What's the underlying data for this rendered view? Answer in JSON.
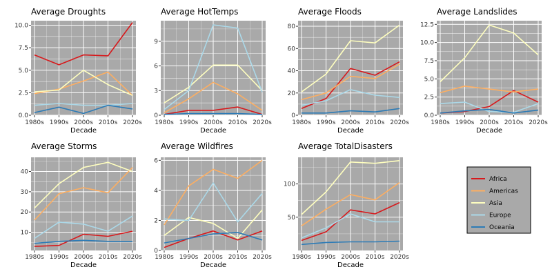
{
  "figure": {
    "legend_position": "right",
    "background": "#ffffff",
    "panel_background": "#a9a9a9",
    "grid_color": "#ffffff"
  },
  "legend": {
    "items": [
      {
        "name": "Africa",
        "color": "#d7191c"
      },
      {
        "name": "Americas",
        "color": "#fdae61"
      },
      {
        "name": "Asia",
        "color": "#ffffbf"
      },
      {
        "name": "Europe",
        "color": "#abd9e9"
      },
      {
        "name": "Oceania",
        "color": "#2c7bb6"
      }
    ]
  },
  "chart_data": [
    {
      "type": "line",
      "title": "Average Droughts",
      "xlabel": "Decade",
      "ylabel": "",
      "categories": [
        "1980s",
        "1990s",
        "2000s",
        "2010s",
        "2020s"
      ],
      "ylim": [
        0,
        10.5
      ],
      "yticks": [
        0.0,
        2.5,
        5.0,
        7.5,
        10.0
      ],
      "ytick_labels": [
        "0.0",
        "2.5",
        "5.0",
        "7.5",
        "10.0"
      ],
      "series": [
        {
          "name": "Africa",
          "values": [
            6.7,
            5.6,
            6.7,
            6.6,
            10.3
          ]
        },
        {
          "name": "Americas",
          "values": [
            2.4,
            2.9,
            3.8,
            4.8,
            2.2
          ]
        },
        {
          "name": "Asia",
          "values": [
            2.6,
            2.8,
            5.0,
            3.4,
            2.2
          ]
        },
        {
          "name": "Europe",
          "values": [
            1.1,
            1.3,
            1.1,
            1.1,
            1.3
          ]
        },
        {
          "name": "Oceania",
          "values": [
            0.3,
            0.9,
            0.2,
            1.1,
            0.7
          ]
        }
      ]
    },
    {
      "type": "line",
      "title": "Average HotTemps",
      "xlabel": "Decade",
      "ylabel": "",
      "categories": [
        "1980s",
        "1990s",
        "2000s",
        "2010s",
        "2020s"
      ],
      "ylim": [
        0,
        11.5
      ],
      "yticks": [
        0,
        3,
        6,
        9
      ],
      "ytick_labels": [
        "0",
        "3",
        "6",
        "9"
      ],
      "series": [
        {
          "name": "Africa",
          "values": [
            0.1,
            0.6,
            0.6,
            1.0,
            0.1
          ]
        },
        {
          "name": "Americas",
          "values": [
            0.3,
            2.0,
            4.0,
            2.6,
            0.6
          ]
        },
        {
          "name": "Asia",
          "values": [
            1.5,
            3.4,
            6.1,
            6.1,
            3.0
          ]
        },
        {
          "name": "Europe",
          "values": [
            0.7,
            3.0,
            11.0,
            10.6,
            2.8
          ]
        },
        {
          "name": "Oceania",
          "values": [
            0.1,
            0.2,
            0.2,
            0.2,
            0.1
          ]
        }
      ]
    },
    {
      "type": "line",
      "title": "Average Floods",
      "xlabel": "Decade",
      "ylabel": "",
      "categories": [
        "1980s",
        "1990s",
        "2000s",
        "2010s",
        "2020s"
      ],
      "ylim": [
        0,
        85
      ],
      "yticks": [
        0,
        20,
        40,
        60,
        80
      ],
      "ytick_labels": [
        "0",
        "20",
        "40",
        "60",
        "80"
      ],
      "series": [
        {
          "name": "Africa",
          "values": [
            6,
            15,
            42,
            36,
            48
          ]
        },
        {
          "name": "Americas",
          "values": [
            14,
            20,
            35,
            33,
            46
          ]
        },
        {
          "name": "Asia",
          "values": [
            21,
            37,
            67,
            65,
            81
          ]
        },
        {
          "name": "Europe",
          "values": [
            9,
            13,
            23,
            18,
            16
          ]
        },
        {
          "name": "Oceania",
          "values": [
            2,
            2,
            4,
            3,
            6
          ]
        }
      ]
    },
    {
      "type": "line",
      "title": "Average Landslides",
      "xlabel": "Decade",
      "ylabel": "",
      "categories": [
        "1980s",
        "1990s",
        "2000s",
        "2010s",
        "2020s"
      ],
      "ylim": [
        0,
        13
      ],
      "yticks": [
        0.0,
        2.5,
        5.0,
        7.5,
        10.0,
        12.5
      ],
      "ytick_labels": [
        "0.0",
        "2.5",
        "5.0",
        "7.5",
        "10.0",
        "12.5"
      ],
      "series": [
        {
          "name": "Africa",
          "values": [
            0.3,
            0.5,
            1.2,
            3.4,
            1.8
          ]
        },
        {
          "name": "Americas",
          "values": [
            3.1,
            4.0,
            3.6,
            3.2,
            3.6
          ]
        },
        {
          "name": "Asia",
          "values": [
            4.6,
            7.9,
            12.4,
            11.3,
            8.3
          ]
        },
        {
          "name": "Europe",
          "values": [
            1.6,
            1.8,
            0.5,
            0.4,
            1.6
          ]
        },
        {
          "name": "Oceania",
          "values": [
            0.3,
            0.6,
            0.8,
            0.3,
            0.7
          ]
        }
      ]
    },
    {
      "type": "line",
      "title": "Average Storms",
      "xlabel": "Decade",
      "ylabel": "",
      "categories": [
        "1980s",
        "1990s",
        "2000s",
        "2010s",
        "2020s"
      ],
      "ylim": [
        1,
        47
      ],
      "yticks": [
        10,
        20,
        30,
        40
      ],
      "ytick_labels": [
        "10",
        "20",
        "30",
        "40"
      ],
      "series": [
        {
          "name": "Africa",
          "values": [
            3,
            3.5,
            9,
            8,
            10.5
          ]
        },
        {
          "name": "Americas",
          "values": [
            16,
            29,
            32,
            29.5,
            42
          ]
        },
        {
          "name": "Asia",
          "values": [
            22,
            34,
            42,
            44.5,
            40
          ]
        },
        {
          "name": "Europe",
          "values": [
            7,
            15,
            14,
            10.5,
            18
          ]
        },
        {
          "name": "Oceania",
          "values": [
            4.5,
            5.5,
            6,
            5.5,
            5.5
          ]
        }
      ]
    },
    {
      "type": "line",
      "title": "Average Wildfires",
      "xlabel": "Decade",
      "ylabel": "",
      "categories": [
        "1980s",
        "1990s",
        "2000s",
        "2010s",
        "2020s"
      ],
      "ylim": [
        0,
        6.2
      ],
      "yticks": [
        0,
        2,
        4,
        6
      ],
      "ytick_labels": [
        "0",
        "2",
        "4",
        "6"
      ],
      "series": [
        {
          "name": "Africa",
          "values": [
            0.2,
            0.8,
            1.3,
            0.7,
            1.3
          ]
        },
        {
          "name": "Americas",
          "values": [
            1.7,
            4.3,
            5.4,
            4.8,
            6.0
          ]
        },
        {
          "name": "Asia",
          "values": [
            1.0,
            2.2,
            1.8,
            0.8,
            2.7
          ]
        },
        {
          "name": "Europe",
          "values": [
            2.1,
            2.0,
            4.5,
            1.9,
            3.8
          ]
        },
        {
          "name": "Oceania",
          "values": [
            0.5,
            0.8,
            1.1,
            1.2,
            0.7
          ]
        }
      ]
    },
    {
      "type": "line",
      "title": "Average TotalDisasters",
      "xlabel": "Decade",
      "ylabel": "",
      "categories": [
        "1980s",
        "1990s",
        "2000s",
        "2010s",
        "2020s"
      ],
      "ylim": [
        0,
        140
      ],
      "yticks": [
        50,
        100
      ],
      "ytick_labels": [
        "50",
        "100"
      ],
      "series": [
        {
          "name": "Africa",
          "values": [
            15,
            28,
            61,
            55,
            72
          ]
        },
        {
          "name": "Americas",
          "values": [
            37,
            62,
            84,
            76,
            102
          ]
        },
        {
          "name": "Asia",
          "values": [
            54,
            88,
            133,
            131,
            135
          ]
        },
        {
          "name": "Europe",
          "values": [
            19,
            34,
            55,
            43,
            43
          ]
        },
        {
          "name": "Oceania",
          "values": [
            9,
            12,
            13,
            13,
            14
          ]
        }
      ]
    }
  ]
}
